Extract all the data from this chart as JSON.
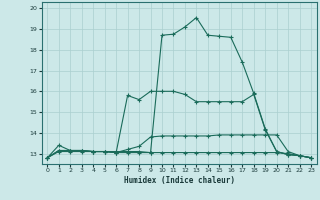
{
  "xlabel": "Humidex (Indice chaleur)",
  "background_color": "#cce8e8",
  "grid_color": "#aacfcf",
  "line_color": "#1a6b5a",
  "xlim": [
    -0.5,
    23.5
  ],
  "ylim": [
    12.5,
    20.3
  ],
  "xticks": [
    0,
    1,
    2,
    3,
    4,
    5,
    6,
    7,
    8,
    9,
    10,
    11,
    12,
    13,
    14,
    15,
    16,
    17,
    18,
    19,
    20,
    21,
    22,
    23
  ],
  "yticks": [
    13,
    14,
    15,
    16,
    17,
    18,
    19,
    20
  ],
  "line1_x": [
    0,
    1,
    2,
    3,
    4,
    5,
    6,
    7,
    8,
    9,
    10,
    11,
    12,
    13,
    14,
    15,
    16,
    17,
    18,
    19,
    20,
    21,
    22,
    23
  ],
  "line1_y": [
    12.8,
    13.4,
    13.15,
    13.15,
    13.1,
    13.1,
    13.1,
    13.1,
    13.1,
    13.05,
    18.7,
    18.75,
    19.1,
    19.55,
    18.7,
    18.65,
    18.6,
    17.4,
    15.9,
    14.2,
    13.1,
    12.95,
    12.9,
    12.8
  ],
  "line2_x": [
    0,
    1,
    2,
    3,
    4,
    5,
    6,
    7,
    8,
    9,
    10,
    11,
    12,
    13,
    14,
    15,
    16,
    17,
    18,
    19,
    20,
    21,
    22,
    23
  ],
  "line2_y": [
    12.8,
    13.15,
    13.15,
    13.15,
    13.1,
    13.1,
    13.05,
    15.8,
    15.6,
    16.0,
    16.0,
    16.0,
    15.85,
    15.5,
    15.5,
    15.5,
    15.5,
    15.5,
    15.85,
    14.15,
    13.1,
    12.95,
    12.9,
    12.8
  ],
  "line3_x": [
    0,
    1,
    2,
    3,
    4,
    5,
    6,
    7,
    8,
    9,
    10,
    11,
    12,
    13,
    14,
    15,
    16,
    17,
    18,
    19,
    20,
    21,
    22,
    23
  ],
  "line3_y": [
    12.8,
    13.15,
    13.15,
    13.15,
    13.1,
    13.1,
    13.05,
    13.2,
    13.35,
    13.8,
    13.85,
    13.85,
    13.85,
    13.85,
    13.85,
    13.9,
    13.9,
    13.9,
    13.9,
    13.9,
    13.9,
    13.1,
    12.9,
    12.8
  ],
  "line4_x": [
    0,
    1,
    2,
    3,
    4,
    5,
    6,
    7,
    8,
    9,
    10,
    11,
    12,
    13,
    14,
    15,
    16,
    17,
    18,
    19,
    20,
    21,
    22,
    23
  ],
  "line4_y": [
    12.8,
    13.1,
    13.1,
    13.1,
    13.1,
    13.1,
    13.05,
    13.05,
    13.05,
    13.05,
    13.05,
    13.05,
    13.05,
    13.05,
    13.05,
    13.05,
    13.05,
    13.05,
    13.05,
    13.05,
    13.05,
    13.0,
    12.9,
    12.8
  ]
}
